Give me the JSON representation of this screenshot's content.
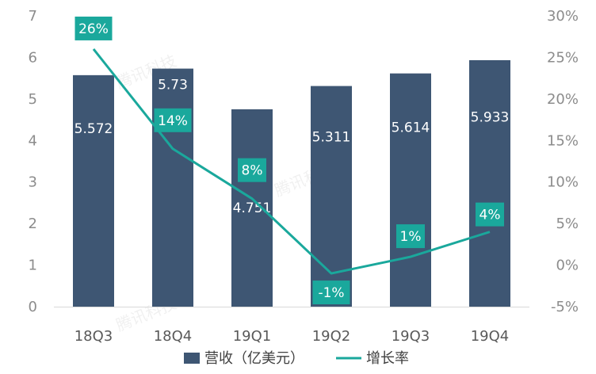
{
  "chart_data": {
    "type": "bar+line",
    "categories": [
      "18Q3",
      "18Q4",
      "19Q1",
      "19Q2",
      "19Q3",
      "19Q4"
    ],
    "series": [
      {
        "name": "营收（亿美元）",
        "type": "bar",
        "axis": "left",
        "values": [
          5.572,
          5.73,
          4.751,
          5.311,
          5.614,
          5.933
        ],
        "labels": [
          "5.572",
          "5.73",
          "4.751",
          "5.311",
          "5.614",
          "5.933"
        ]
      },
      {
        "name": "增长率",
        "type": "line",
        "axis": "right",
        "values": [
          26,
          14,
          8,
          -1,
          1,
          4
        ],
        "labels": [
          "26%",
          "14%",
          "8%",
          "-1%",
          "1%",
          "4%"
        ]
      }
    ],
    "y_left": {
      "min": 0,
      "max": 7,
      "ticks": [
        "0",
        "1",
        "2",
        "3",
        "4",
        "5",
        "6",
        "7"
      ]
    },
    "y_right": {
      "min": -5,
      "max": 30,
      "ticks": [
        "-5%",
        "0%",
        "5%",
        "10%",
        "15%",
        "20%",
        "25%",
        "30%"
      ]
    },
    "legend_position": "bottom",
    "watermark": "腾讯科技"
  },
  "colors": {
    "bar": "#3e5673",
    "line": "#1aa89c",
    "label_box": "#1aa89c",
    "axis_text": "#8c8c8c",
    "category_text": "#595959",
    "baseline": "#d9d9d9"
  }
}
